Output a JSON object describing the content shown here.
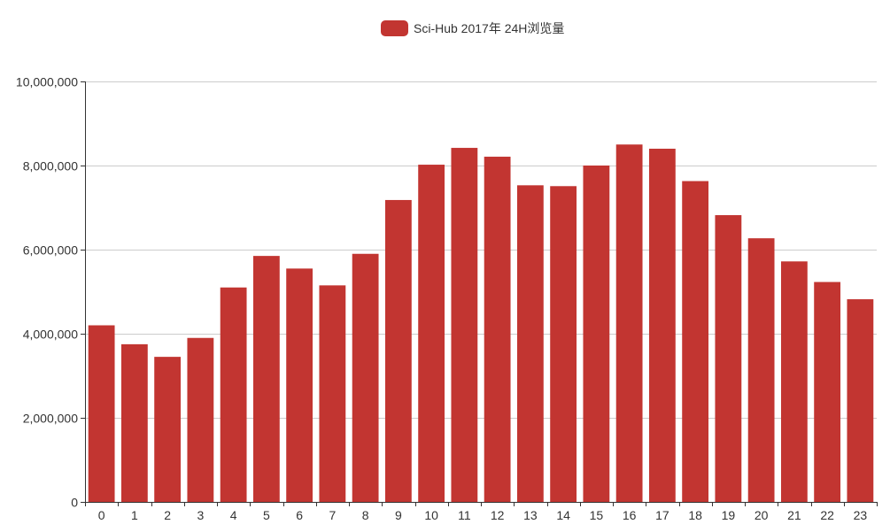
{
  "legend": {
    "label": "Sci-Hub 2017年 24H浏览量",
    "color": "#c23531"
  },
  "chart_data": {
    "type": "bar",
    "categories": [
      "0",
      "1",
      "2",
      "3",
      "4",
      "5",
      "6",
      "7",
      "8",
      "9",
      "10",
      "11",
      "12",
      "13",
      "14",
      "15",
      "16",
      "17",
      "18",
      "19",
      "20",
      "21",
      "22",
      "23"
    ],
    "series": [
      {
        "name": "Sci-Hub 2017年 24H浏览量",
        "color": "#c23531",
        "values": [
          4200000,
          3750000,
          3450000,
          3900000,
          5100000,
          5850000,
          5550000,
          5150000,
          5900000,
          7180000,
          8020000,
          8420000,
          8210000,
          7530000,
          7510000,
          8000000,
          8500000,
          8400000,
          7630000,
          6820000,
          6270000,
          5720000,
          5230000,
          4820000
        ]
      }
    ],
    "y_ticks": [
      "0",
      "2,000,000",
      "4,000,000",
      "6,000,000",
      "8,000,000",
      "10,000,000"
    ],
    "ylim": [
      0,
      10000000
    ],
    "grid": true,
    "legend_position": "top-center",
    "title": "",
    "xlabel": "",
    "ylabel": ""
  }
}
